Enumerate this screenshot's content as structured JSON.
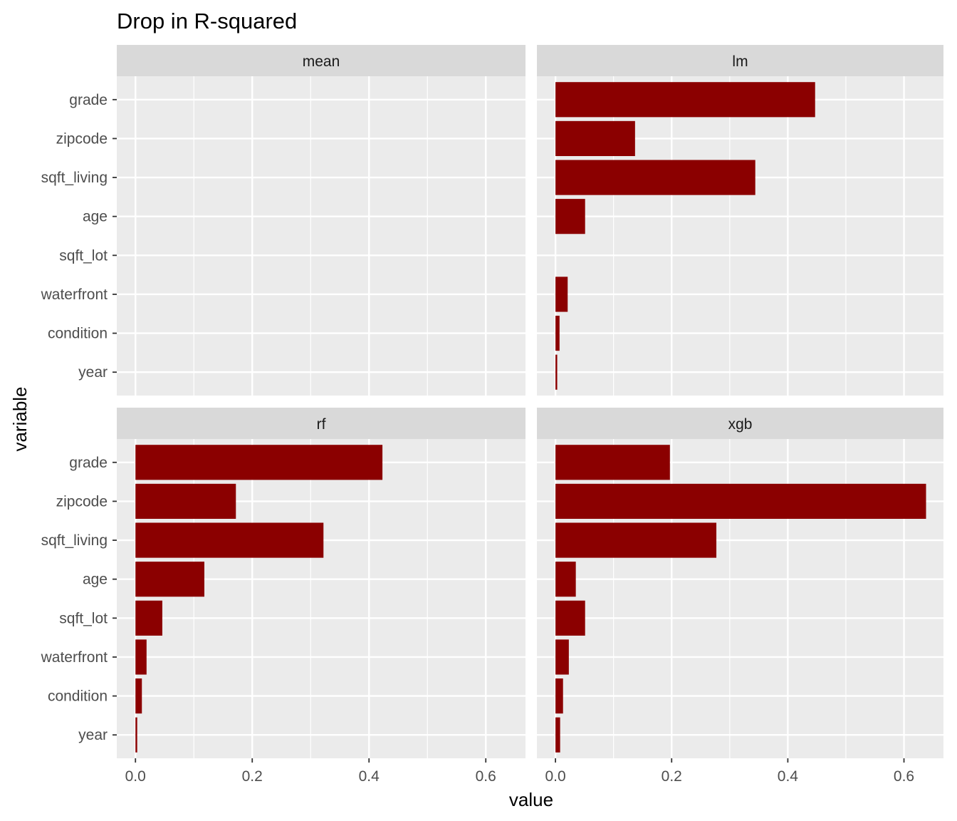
{
  "chart_data": {
    "type": "bar",
    "orientation": "horizontal",
    "title": "Drop in R-squared",
    "xlabel": "value",
    "ylabel": "variable",
    "xlim": [
      -0.032,
      0.668
    ],
    "x_ticks": [
      0.0,
      0.2,
      0.4,
      0.6
    ],
    "x_tick_labels": [
      "0.0",
      "0.2",
      "0.4",
      "0.6"
    ],
    "grid": true,
    "legend": "none",
    "bar_color": "#8B0000",
    "panel_background": "#EBEBEB",
    "strip_background": "#D9D9D9",
    "categories": [
      "grade",
      "zipcode",
      "sqft_living",
      "age",
      "sqft_lot",
      "waterfront",
      "condition",
      "year"
    ],
    "facets": [
      {
        "name": "mean",
        "values": [
          0,
          0,
          0,
          0,
          0,
          0,
          0,
          0
        ]
      },
      {
        "name": "lm",
        "values": [
          0.447,
          0.137,
          0.344,
          0.051,
          0,
          0.021,
          0.007,
          0.003
        ]
      },
      {
        "name": "rf",
        "values": [
          0.423,
          0.172,
          0.322,
          0.118,
          0.046,
          0.019,
          0.011,
          0.003
        ]
      },
      {
        "name": "xgb",
        "values": [
          0.197,
          0.638,
          0.277,
          0.035,
          0.051,
          0.023,
          0.013,
          0.008
        ]
      }
    ]
  }
}
